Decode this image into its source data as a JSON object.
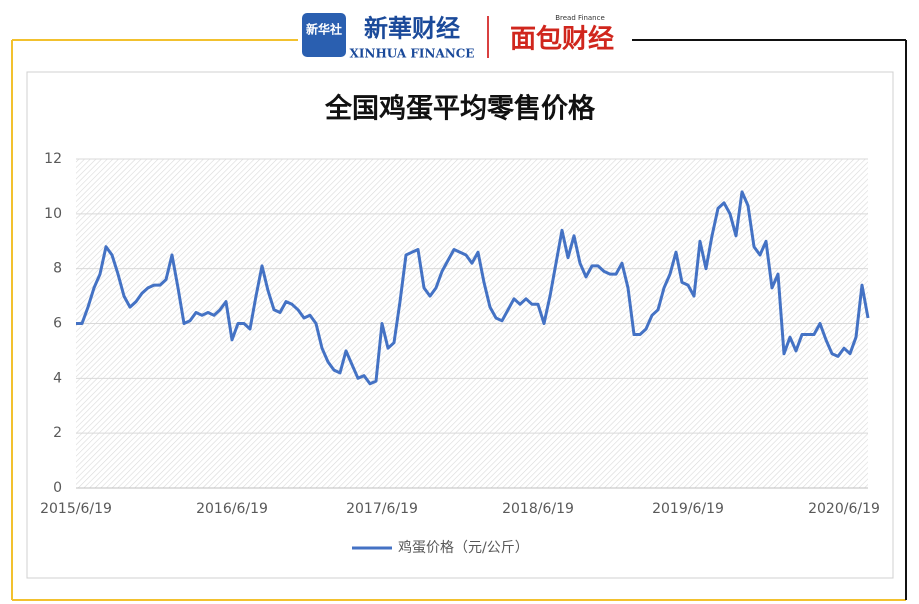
{
  "header": {
    "logo_icon": "新华社",
    "brand": "新華财经",
    "brand_en": "XINHUA FINANCE",
    "partner_small": "Bread Finance",
    "partner": "面包财经"
  },
  "chart_data": {
    "type": "line",
    "title": "全国鸡蛋平均零售价格",
    "categories": [
      "2015/6/19",
      null,
      null,
      null,
      null,
      null,
      null,
      null,
      null,
      null,
      null,
      null,
      null,
      null,
      null,
      null,
      null,
      null,
      null,
      null,
      null,
      null,
      null,
      null,
      null,
      null,
      "2016/6/19",
      null,
      null,
      null,
      null,
      null,
      null,
      null,
      null,
      null,
      null,
      null,
      null,
      null,
      null,
      null,
      null,
      null,
      null,
      null,
      null,
      null,
      null,
      null,
      null,
      "2017/6/19",
      null,
      null,
      null,
      null,
      null,
      null,
      null,
      null,
      null,
      null,
      null,
      null,
      null,
      null,
      null,
      null,
      null,
      null,
      null,
      null,
      null,
      null,
      null,
      null,
      null,
      "2018/6/19",
      null,
      null,
      null,
      null,
      null,
      null,
      null,
      null,
      null,
      null,
      null,
      null,
      null,
      null,
      null,
      null,
      null,
      null,
      null,
      null,
      null,
      null,
      null,
      null,
      "2019/6/19",
      null,
      null,
      null,
      null,
      null,
      null,
      null,
      null,
      null,
      null,
      null,
      null,
      null,
      null,
      null,
      null,
      null,
      null,
      null,
      null,
      null,
      null,
      null,
      null,
      null,
      "2020/6/19",
      null,
      null,
      null,
      null
    ],
    "series": [
      {
        "name": "鸡蛋价格（元/公斤）",
        "color": "#4472c4",
        "values": [
          6.0,
          6.0,
          6.6,
          7.3,
          7.8,
          8.8,
          8.5,
          7.8,
          7.0,
          6.6,
          6.8,
          7.1,
          7.3,
          7.4,
          7.4,
          7.6,
          8.5,
          7.3,
          6.0,
          6.1,
          6.4,
          6.3,
          6.4,
          6.3,
          6.5,
          6.8,
          5.4,
          6.0,
          6.0,
          5.8,
          7.0,
          8.1,
          7.2,
          6.5,
          6.4,
          6.8,
          6.7,
          6.5,
          6.2,
          6.3,
          6.0,
          5.1,
          4.6,
          4.3,
          4.2,
          5.0,
          4.5,
          4.0,
          4.1,
          3.8,
          3.9,
          6.0,
          5.1,
          5.3,
          6.8,
          8.5,
          8.6,
          8.7,
          7.3,
          7.0,
          7.3,
          7.9,
          8.3,
          8.7,
          8.6,
          8.5,
          8.2,
          8.6,
          7.5,
          6.6,
          6.2,
          6.1,
          6.5,
          6.9,
          6.7,
          6.9,
          6.7,
          6.7,
          6.0,
          7.0,
          8.2,
          9.4,
          8.4,
          9.2,
          8.2,
          7.7,
          8.1,
          8.1,
          7.9,
          7.8,
          7.8,
          8.2,
          7.3,
          5.6,
          5.6,
          5.8,
          6.3,
          6.5,
          7.3,
          7.8,
          8.6,
          7.5,
          7.4,
          7.0,
          9.0,
          8.0,
          9.2,
          10.2,
          10.4,
          10.0,
          9.2,
          10.8,
          10.3,
          8.8,
          8.5,
          9.0,
          7.3,
          7.8,
          4.9,
          5.5,
          5.0,
          5.6,
          5.6,
          5.6,
          6.0,
          5.4,
          4.9,
          4.8,
          5.1,
          4.9,
          5.5,
          7.4,
          6.2
        ]
      }
    ],
    "ylim": [
      0,
      12
    ],
    "yticks": [
      0,
      2,
      4,
      6,
      8,
      10,
      12
    ],
    "grid": true,
    "legend": "bottom"
  }
}
